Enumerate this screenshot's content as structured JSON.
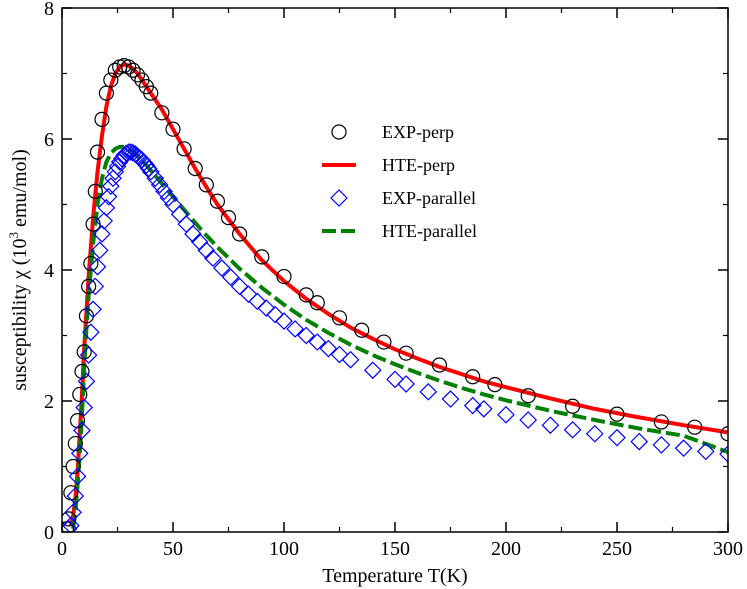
{
  "chart_data": {
    "type": "scatter",
    "title": "",
    "xlabel": "Temperature T(K)",
    "ylabel": {
      "prefix": "susceptibility χ (10",
      "sup": "3",
      "suffix": " emu/mol)"
    },
    "xlim": [
      0,
      300
    ],
    "ylim": [
      0,
      8
    ],
    "xticks": [
      0,
      50,
      100,
      150,
      200,
      250,
      300
    ],
    "yticks": [
      0,
      2,
      4,
      6,
      8
    ],
    "grid": false,
    "legend_position": "upper-middle",
    "colors": {
      "exp_perp": "#000000",
      "hte_perp": "#ff0000",
      "exp_parallel": "#0000ff",
      "hte_parallel": "#008000"
    },
    "series": [
      {
        "name": "EXP-perp",
        "style": "circle-markers",
        "x": [
          2,
          3,
          4,
          5,
          6,
          7,
          8,
          9,
          10,
          11,
          12,
          13,
          14,
          15,
          16,
          18,
          20,
          22,
          24,
          26,
          28,
          30,
          32,
          34,
          36,
          38,
          40,
          45,
          50,
          55,
          60,
          65,
          70,
          75,
          80,
          90,
          100,
          110,
          115,
          125,
          135,
          145,
          155,
          170,
          185,
          195,
          210,
          230,
          250,
          270,
          285,
          300
        ],
        "y": [
          0.05,
          0.2,
          0.6,
          1.0,
          1.35,
          1.7,
          2.1,
          2.45,
          2.75,
          3.3,
          3.75,
          4.1,
          4.7,
          5.2,
          5.8,
          6.3,
          6.7,
          6.9,
          7.05,
          7.1,
          7.12,
          7.1,
          7.05,
          6.98,
          6.9,
          6.8,
          6.7,
          6.4,
          6.15,
          5.85,
          5.55,
          5.3,
          5.05,
          4.8,
          4.55,
          4.2,
          3.9,
          3.62,
          3.5,
          3.27,
          3.08,
          2.9,
          2.73,
          2.55,
          2.37,
          2.25,
          2.08,
          1.92,
          1.8,
          1.68,
          1.6,
          1.5
        ]
      },
      {
        "name": "HTE-perp",
        "style": "solid-line",
        "x": [
          4,
          5,
          6,
          7,
          8,
          9,
          10,
          12,
          14,
          16,
          18,
          20,
          22,
          24,
          26,
          28,
          30,
          32,
          34,
          36,
          38,
          40,
          45,
          50,
          55,
          60,
          65,
          70,
          80,
          90,
          100,
          110,
          120,
          130,
          140,
          150,
          160,
          170,
          180,
          190,
          200,
          220,
          240,
          260,
          280,
          300
        ],
        "y": [
          0.1,
          0.25,
          0.5,
          0.9,
          1.5,
          2.1,
          2.8,
          3.9,
          4.8,
          5.5,
          6.05,
          6.5,
          6.8,
          7.0,
          7.1,
          7.14,
          7.12,
          7.07,
          7.0,
          6.9,
          6.8,
          6.7,
          6.45,
          6.15,
          5.85,
          5.55,
          5.27,
          5.0,
          4.55,
          4.15,
          3.83,
          3.56,
          3.33,
          3.12,
          2.95,
          2.79,
          2.65,
          2.52,
          2.41,
          2.3,
          2.21,
          2.04,
          1.88,
          1.75,
          1.63,
          1.52
        ]
      },
      {
        "name": "EXP-parallel",
        "style": "diamond-markers",
        "x": [
          3,
          4,
          5,
          6,
          7,
          8,
          9,
          10,
          11,
          12,
          13,
          14,
          15,
          16,
          17,
          18,
          19,
          20,
          21,
          22,
          23,
          24,
          25,
          26,
          27,
          28,
          29,
          30,
          31,
          32,
          33,
          34,
          35,
          36,
          37,
          38,
          39,
          40,
          42,
          44,
          46,
          48,
          50,
          53,
          56,
          59,
          62,
          65,
          68,
          72,
          76,
          80,
          84,
          88,
          92,
          96,
          100,
          105,
          110,
          115,
          120,
          125,
          130,
          140,
          150,
          155,
          165,
          175,
          185,
          190,
          200,
          210,
          220,
          230,
          240,
          250,
          260,
          270,
          280,
          290,
          300
        ],
        "y": [
          0.05,
          0.1,
          0.3,
          0.55,
          0.85,
          1.2,
          1.55,
          1.9,
          2.3,
          2.7,
          3.05,
          3.4,
          3.75,
          4.05,
          4.3,
          4.55,
          4.75,
          4.95,
          5.12,
          5.28,
          5.4,
          5.5,
          5.58,
          5.65,
          5.7,
          5.75,
          5.78,
          5.8,
          5.8,
          5.79,
          5.77,
          5.74,
          5.71,
          5.68,
          5.64,
          5.6,
          5.55,
          5.5,
          5.4,
          5.3,
          5.2,
          5.1,
          5.0,
          4.85,
          4.7,
          4.55,
          4.43,
          4.3,
          4.18,
          4.03,
          3.89,
          3.75,
          3.63,
          3.52,
          3.42,
          3.32,
          3.22,
          3.1,
          3.0,
          2.9,
          2.8,
          2.71,
          2.63,
          2.47,
          2.33,
          2.26,
          2.14,
          2.03,
          1.93,
          1.88,
          1.79,
          1.71,
          1.63,
          1.56,
          1.5,
          1.44,
          1.38,
          1.33,
          1.28,
          1.23,
          1.19
        ]
      },
      {
        "name": "HTE-parallel",
        "style": "dashed-line",
        "x": [
          5,
          6,
          7,
          8,
          9,
          10,
          11,
          12,
          14,
          16,
          18,
          20,
          22,
          24,
          26,
          28,
          30,
          32,
          34,
          36,
          38,
          40,
          45,
          50,
          55,
          60,
          65,
          70,
          80,
          90,
          100,
          110,
          120,
          130,
          140,
          150,
          160,
          170,
          180,
          190,
          200,
          220,
          240,
          260,
          280,
          300
        ],
        "y": [
          0.05,
          0.3,
          0.7,
          1.2,
          1.8,
          2.5,
          3.1,
          3.6,
          4.4,
          5.0,
          5.4,
          5.65,
          5.78,
          5.85,
          5.88,
          5.88,
          5.85,
          5.8,
          5.74,
          5.67,
          5.6,
          5.52,
          5.32,
          5.12,
          4.92,
          4.72,
          4.53,
          4.35,
          4.02,
          3.73,
          3.47,
          3.24,
          3.04,
          2.86,
          2.7,
          2.56,
          2.43,
          2.31,
          2.2,
          2.1,
          2.01,
          1.85,
          1.71,
          1.58,
          1.47,
          1.22
        ]
      }
    ]
  }
}
